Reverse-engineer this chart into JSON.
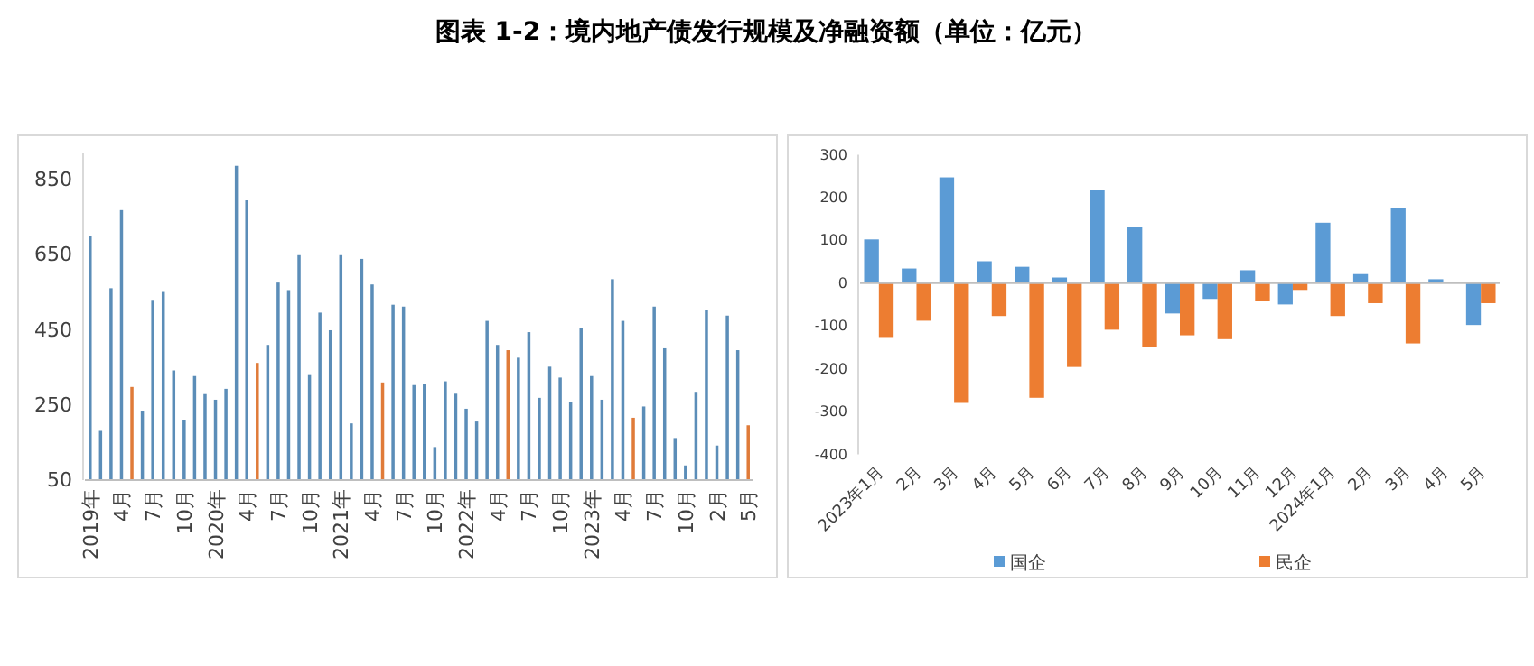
{
  "chart_data": [
    {
      "type": "bar",
      "title": "图表 1-2：境内地产债发行规模及净融资额（单位：亿元）",
      "categories": [
        "2019年",
        null,
        null,
        "4月",
        null,
        null,
        "7月",
        null,
        null,
        "10月",
        null,
        null,
        "2020年",
        null,
        null,
        "4月",
        null,
        null,
        "7月",
        null,
        null,
        "10月",
        null,
        null,
        "2021年",
        null,
        null,
        "4月",
        null,
        null,
        "7月",
        null,
        null,
        "10月",
        null,
        null,
        "2022年",
        null,
        null,
        "4月",
        null,
        null,
        "7月",
        null,
        null,
        "10月",
        null,
        null,
        "2023年",
        null,
        null,
        "4月",
        null,
        null,
        "7月",
        null,
        null,
        "10月",
        null,
        null,
        "2月",
        null,
        null,
        "5月"
      ],
      "values": [
        701,
        181,
        561,
        769,
        298,
        235,
        530,
        551,
        342,
        211,
        327,
        279,
        264,
        293,
        887,
        795,
        362,
        410,
        576,
        556,
        649,
        332,
        496,
        449,
        649,
        201,
        639,
        571,
        310,
        517,
        512,
        303,
        306,
        138,
        313,
        280,
        240,
        206,
        474,
        410,
        396,
        376,
        444,
        269,
        352,
        323,
        258,
        454,
        327,
        264,
        585,
        474,
        216,
        246,
        512,
        401,
        162,
        89,
        285,
        503,
        142,
        488,
        396,
        196
      ],
      "colors": [
        "#5b8db8",
        "#5b8db8",
        "#5b8db8",
        "#5b8db8",
        "#e07b39",
        "#5b8db8",
        "#5b8db8",
        "#5b8db8",
        "#5b8db8",
        "#5b8db8",
        "#5b8db8",
        "#5b8db8",
        "#5b8db8",
        "#5b8db8",
        "#5b8db8",
        "#5b8db8",
        "#e07b39",
        "#5b8db8",
        "#5b8db8",
        "#5b8db8",
        "#5b8db8",
        "#5b8db8",
        "#5b8db8",
        "#5b8db8",
        "#5b8db8",
        "#5b8db8",
        "#5b8db8",
        "#5b8db8",
        "#e07b39",
        "#5b8db8",
        "#5b8db8",
        "#5b8db8",
        "#5b8db8",
        "#5b8db8",
        "#5b8db8",
        "#5b8db8",
        "#5b8db8",
        "#5b8db8",
        "#5b8db8",
        "#5b8db8",
        "#e07b39",
        "#5b8db8",
        "#5b8db8",
        "#5b8db8",
        "#5b8db8",
        "#5b8db8",
        "#5b8db8",
        "#5b8db8",
        "#5b8db8",
        "#5b8db8",
        "#5b8db8",
        "#5b8db8",
        "#e07b39",
        "#5b8db8",
        "#5b8db8",
        "#5b8db8",
        "#5b8db8",
        "#5b8db8",
        "#5b8db8",
        "#5b8db8",
        "#5b8db8",
        "#5b8db8",
        "#5b8db8",
        "#e07b39"
      ],
      "ylim": [
        50,
        920
      ],
      "yticks": [
        50,
        250,
        450,
        650,
        850
      ]
    },
    {
      "type": "bar",
      "categories": [
        "2023年1月",
        "2月",
        "3月",
        "4月",
        "5月",
        "6月",
        "7月",
        "8月",
        "9月",
        "10月",
        "11月",
        "12月",
        "2024年1月",
        "2月",
        "3月",
        "4月",
        "5月"
      ],
      "series": [
        {
          "name": "国企",
          "color": "#5b9bd5",
          "values": [
            102,
            34,
            247,
            51,
            38,
            13,
            217,
            132,
            -71,
            -37,
            30,
            -50,
            141,
            21,
            175,
            9,
            -98
          ]
        },
        {
          "name": "民企",
          "color": "#ed7d31",
          "values": [
            -126,
            -88,
            -280,
            -77,
            -268,
            -196,
            -109,
            -149,
            -122,
            -131,
            -41,
            -16,
            -77,
            -47,
            -141,
            null,
            -47
          ]
        }
      ],
      "ylim": [
        -400,
        300
      ],
      "yticks": [
        -400,
        -300,
        -200,
        -100,
        0,
        100,
        200,
        300
      ],
      "legend": "bottom"
    }
  ]
}
